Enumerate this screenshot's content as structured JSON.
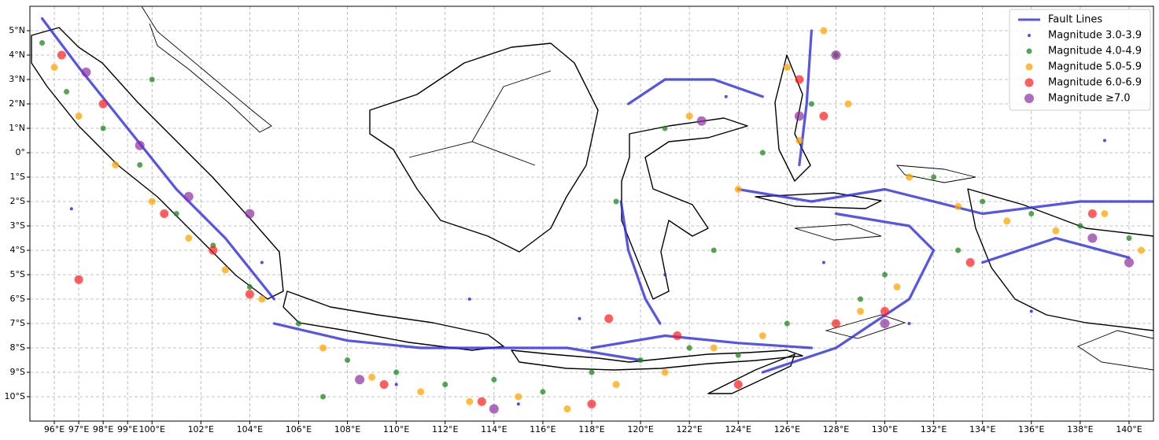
{
  "chart_data": {
    "type": "scatter",
    "xlim": [
      95,
      141
    ],
    "ylim": [
      -11,
      6
    ],
    "grid": true,
    "legend": "upper right",
    "xticks": [
      {
        "value": 96,
        "label": "96°E"
      },
      {
        "value": 97,
        "label": "97°E"
      },
      {
        "value": 98,
        "label": "98°E"
      },
      {
        "value": 99,
        "label": "99°E"
      },
      {
        "value": 100,
        "label": "100°E"
      },
      {
        "value": 102,
        "label": "102°E"
      },
      {
        "value": 104,
        "label": "104°E"
      },
      {
        "value": 106,
        "label": "106°E"
      },
      {
        "value": 108,
        "label": "108°E"
      },
      {
        "value": 110,
        "label": "110°E"
      },
      {
        "value": 112,
        "label": "112°E"
      },
      {
        "value": 114,
        "label": "114°E"
      },
      {
        "value": 116,
        "label": "116°E"
      },
      {
        "value": 118,
        "label": "118°E"
      },
      {
        "value": 120,
        "label": "120°E"
      },
      {
        "value": 122,
        "label": "122°E"
      },
      {
        "value": 124,
        "label": "124°E"
      },
      {
        "value": 126,
        "label": "126°E"
      },
      {
        "value": 128,
        "label": "128°E"
      },
      {
        "value": 130,
        "label": "130°E"
      },
      {
        "value": 132,
        "label": "132°E"
      },
      {
        "value": 134,
        "label": "134°E"
      },
      {
        "value": 136,
        "label": "136°E"
      },
      {
        "value": 138,
        "label": "138°E"
      },
      {
        "value": 140,
        "label": "140°E"
      }
    ],
    "yticks": [
      {
        "value": 5,
        "label": "5°N"
      },
      {
        "value": 4,
        "label": "4°N"
      },
      {
        "value": 3,
        "label": "3°N"
      },
      {
        "value": 2,
        "label": "2°N"
      },
      {
        "value": 1,
        "label": "1°N"
      },
      {
        "value": 0,
        "label": "0°"
      },
      {
        "value": -1,
        "label": "1°S"
      },
      {
        "value": -2,
        "label": "2°S"
      },
      {
        "value": -3,
        "label": "3°S"
      },
      {
        "value": -4,
        "label": "4°S"
      },
      {
        "value": -5,
        "label": "5°S"
      },
      {
        "value": -6,
        "label": "6°S"
      },
      {
        "value": -7,
        "label": "7°S"
      },
      {
        "value": -8,
        "label": "8°S"
      },
      {
        "value": -9,
        "label": "9°S"
      },
      {
        "value": -10,
        "label": "10°S"
      }
    ],
    "series": [
      {
        "name": "Fault Lines",
        "color": "#2a2ae0",
        "lines": [
          {
            "x": [
              95.5,
              97,
              99,
              101,
              103,
              105
            ],
            "y": [
              5.5,
              3.5,
              1,
              -1.5,
              -3.5,
              -6
            ]
          },
          {
            "x": [
              105,
              108,
              111,
              114,
              117,
              120
            ],
            "y": [
              -7,
              -7.7,
              -8,
              -8,
              -8,
              -8.5
            ]
          },
          {
            "x": [
              118,
              121,
              124,
              127
            ],
            "y": [
              -8,
              -7.5,
              -7.8,
              -8
            ]
          },
          {
            "x": [
              119.5,
              121,
              123,
              125
            ],
            "y": [
              2,
              3,
              3,
              2.3
            ]
          },
          {
            "x": [
              125,
              128,
              131,
              132,
              131,
              128
            ],
            "y": [
              -9,
              -8,
              -6,
              -4,
              -3,
              -2.5
            ]
          },
          {
            "x": [
              124,
              127,
              130,
              134,
              138,
              141
            ],
            "y": [
              -1.5,
              -2,
              -1.5,
              -2.5,
              -2,
              -2
            ]
          },
          {
            "x": [
              134,
              137,
              140
            ],
            "y": [
              -4.5,
              -3.5,
              -4.3
            ]
          },
          {
            "x": [
              126.5,
              126.8,
              127
            ],
            "y": [
              -0.5,
              2,
              5
            ]
          },
          {
            "x": [
              119.2,
              119.5,
              120.2,
              120.8
            ],
            "y": [
              -2,
              -4,
              -6,
              -7
            ]
          }
        ]
      },
      {
        "name": "Magnitude 3.0-3.9",
        "color": "#1f1fff",
        "x": [
          96.7,
          104.5,
          110,
          113,
          117.5,
          121,
          127.5,
          131,
          136,
          139,
          115,
          123.5
        ],
        "values": [
          -2.3,
          -4.5,
          -9.5,
          -6,
          -6.8,
          -5,
          -4.5,
          -7,
          -6.5,
          0.5,
          -10.3,
          2.3
        ]
      },
      {
        "name": "Magnitude 4.0-4.9",
        "color": "#1a8a1a",
        "x": [
          95.5,
          96.5,
          98,
          99.5,
          101,
          102.5,
          104,
          106,
          108,
          110,
          112,
          114,
          116,
          118,
          120,
          122,
          124,
          126,
          127,
          128,
          130,
          132,
          134,
          136,
          138,
          140,
          121,
          125,
          129,
          133,
          100,
          107,
          119,
          123
        ],
        "values": [
          4.5,
          2.5,
          1,
          -0.5,
          -2.5,
          -3.8,
          -5.5,
          -7,
          -8.5,
          -9,
          -9.5,
          -9.3,
          -9.8,
          -9,
          -8.5,
          -8,
          -8.3,
          -7,
          2,
          4,
          -5,
          -1,
          -2,
          -2.5,
          -3,
          -3.5,
          1,
          0,
          -6,
          -4,
          3,
          -10,
          -2,
          -4
        ]
      },
      {
        "name": "Magnitude 5.0-5.9",
        "color": "#ffa500",
        "x": [
          96,
          97,
          98.5,
          100,
          101.5,
          103,
          104.5,
          107,
          109,
          111,
          113,
          115,
          117,
          119,
          121,
          123,
          125,
          126,
          127.5,
          128.5,
          129,
          130.5,
          131,
          133,
          135,
          137,
          139,
          140.5,
          122,
          124,
          126.5
        ],
        "values": [
          3.5,
          1.5,
          -0.5,
          -2,
          -3.5,
          -4.8,
          -6,
          -8,
          -9.2,
          -9.8,
          -10.2,
          -10,
          -10.5,
          -9.5,
          -9,
          -8,
          -7.5,
          3.5,
          5,
          2,
          -6.5,
          -5.5,
          -1,
          -2.2,
          -2.8,
          -3.2,
          -2.5,
          -4,
          1.5,
          -1.5,
          0.5
        ]
      },
      {
        "name": "Magnitude 6.0-6.9",
        "color": "#ff1a1a",
        "x": [
          96.3,
          98,
          100.5,
          102.5,
          104,
          109.5,
          113.5,
          118,
          121.5,
          124,
          126.5,
          127.5,
          128,
          130,
          133.5,
          138.5,
          97,
          118.7
        ],
        "values": [
          4,
          2,
          -2.5,
          -4,
          -5.8,
          -9.5,
          -10.2,
          -10.3,
          -7.5,
          -9.5,
          3,
          1.5,
          -7,
          -6.5,
          -4.5,
          -2.5,
          -5.2,
          -6.8
        ]
      },
      {
        "name": "Magnitude ≥7.0",
        "color": "#8b2fa0",
        "x": [
          97.3,
          99.5,
          101.5,
          104,
          108.5,
          114,
          122.5,
          126.5,
          128,
          130,
          138.5,
          140
        ],
        "values": [
          3.3,
          0.3,
          -1.8,
          -2.5,
          -9.3,
          -10.5,
          1.3,
          1.5,
          4,
          -7,
          -3.5,
          -4.5
        ]
      }
    ]
  }
}
